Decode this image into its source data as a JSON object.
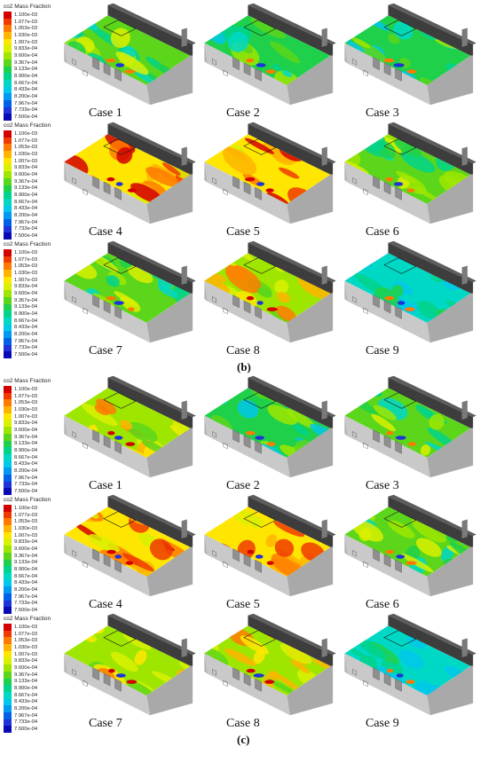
{
  "legend": {
    "title": "co2 Mass Fraction",
    "levels": [
      {
        "label": "1.100e-03",
        "color": "#d40000"
      },
      {
        "label": "1.077e-03",
        "color": "#f03a00"
      },
      {
        "label": "1.053e-03",
        "color": "#ff7a00"
      },
      {
        "label": "1.030e-03",
        "color": "#ffb400"
      },
      {
        "label": "1.007e-03",
        "color": "#ffe600"
      },
      {
        "label": "9.833e-04",
        "color": "#d9f000"
      },
      {
        "label": "9.600e-04",
        "color": "#9ee600"
      },
      {
        "label": "9.367e-04",
        "color": "#5cd61a"
      },
      {
        "label": "9.133e-04",
        "color": "#1fd14a"
      },
      {
        "label": "8.900e-04",
        "color": "#00d48c"
      },
      {
        "label": "8.667e-04",
        "color": "#00d8c6"
      },
      {
        "label": "8.433e-04",
        "color": "#00c8ea"
      },
      {
        "label": "8.200e-04",
        "color": "#0099f0"
      },
      {
        "label": "7.967e-04",
        "color": "#0060e8"
      },
      {
        "label": "7.733e-04",
        "color": "#1f33d8"
      },
      {
        "label": "7.500e-04",
        "color": "#0a0ab4"
      }
    ]
  },
  "panels": [
    {
      "label": "(b)",
      "cases": [
        {
          "caption": "Case 1",
          "tone": 2
        },
        {
          "caption": "Case 2",
          "tone": 1
        },
        {
          "caption": "Case 3",
          "tone": 1
        },
        {
          "caption": "Case 4",
          "tone": 4
        },
        {
          "caption": "Case 5",
          "tone": 5
        },
        {
          "caption": "Case 6",
          "tone": 2
        },
        {
          "caption": "Case 7",
          "tone": 2
        },
        {
          "caption": "Case 8",
          "tone": 3
        },
        {
          "caption": "Case 9",
          "tone": 0
        }
      ]
    },
    {
      "label": "(c)",
      "cases": [
        {
          "caption": "Case 1",
          "tone": 3
        },
        {
          "caption": "Case 2",
          "tone": 1
        },
        {
          "caption": "Case 3",
          "tone": 2
        },
        {
          "caption": "Case 4",
          "tone": 4
        },
        {
          "caption": "Case 5",
          "tone": 5
        },
        {
          "caption": "Case 6",
          "tone": 2
        },
        {
          "caption": "Case 7",
          "tone": 3
        },
        {
          "caption": "Case 8",
          "tone": 3
        },
        {
          "caption": "Case 9",
          "tone": 0
        }
      ]
    }
  ]
}
